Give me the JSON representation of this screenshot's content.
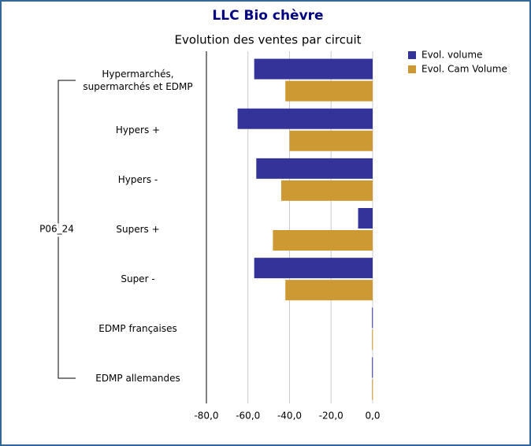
{
  "chart_data": {
    "type": "bar",
    "orientation": "horizontal",
    "title": "LLC Bio chèvre",
    "subtitle": "Evolution des ventes par circuit",
    "group": "P06_24",
    "categories": [
      "Hypermarchés,\nsupermarchés et EDMP",
      "Hypers +",
      "Hypers -",
      "Supers +",
      "Super -",
      "EDMP françaises",
      "EDMP allemandes"
    ],
    "series": [
      {
        "name": "Evol. volume",
        "color": "#333399",
        "values": [
          -57,
          -65,
          -56,
          -7,
          -57,
          -0.3,
          -0.3
        ]
      },
      {
        "name": "Evol. Cam Volume",
        "color": "#cc9933",
        "values": [
          -42,
          -40,
          -44,
          -48,
          -42,
          -0.3,
          -0.3
        ]
      }
    ],
    "xlim": [
      -80,
      0
    ],
    "xticks": [
      {
        "value": -80,
        "label": "-80,0"
      },
      {
        "value": -60,
        "label": "-60,0"
      },
      {
        "value": -40,
        "label": "-40,0"
      },
      {
        "value": -20,
        "label": "-20,0"
      },
      {
        "value": 0,
        "label": "0,0"
      }
    ],
    "grid": true,
    "legend": "top-right"
  }
}
